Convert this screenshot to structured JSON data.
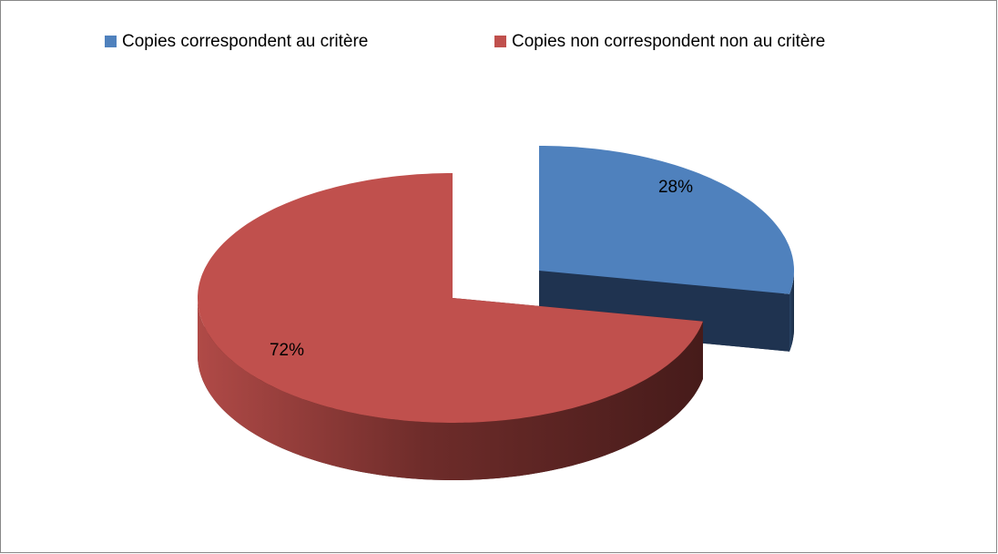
{
  "chart_data": {
    "type": "pie",
    "categories": [
      "Copies correspondent au critère",
      "Copies non correspondent non au critère"
    ],
    "values": [
      28,
      72
    ],
    "value_labels": [
      "28%",
      "72%"
    ],
    "colors": [
      "#4f81bd",
      "#c0504d"
    ],
    "legend": "top"
  }
}
